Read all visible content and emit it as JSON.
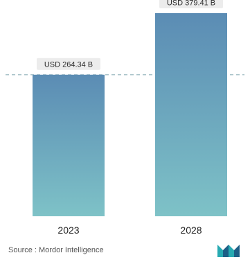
{
  "chart_data": {
    "type": "bar",
    "categories": [
      "2023",
      "2028"
    ],
    "values": [
      264.34,
      379.41
    ],
    "data_labels": [
      "USD 264.34 B",
      "USD 379.41 B"
    ],
    "title": "",
    "xlabel": "",
    "ylabel": "",
    "ylim": [
      0,
      400
    ],
    "grid": false,
    "legend": "none",
    "reference_line": {
      "value": 264.34,
      "style": "dashed",
      "color": "#8fb0b9"
    },
    "colors": {
      "bar_top": "#5b8cb4",
      "bar_bottom": "#7ec2c7",
      "label_bg": "#ececec",
      "label_text": "#2b2b2b"
    }
  },
  "footer": {
    "source": "Source : Mordor Intelligence",
    "brand_logo": "mordor-intelligence-logo",
    "brand_colors": [
      "#27aab2",
      "#1c5e86"
    ]
  }
}
